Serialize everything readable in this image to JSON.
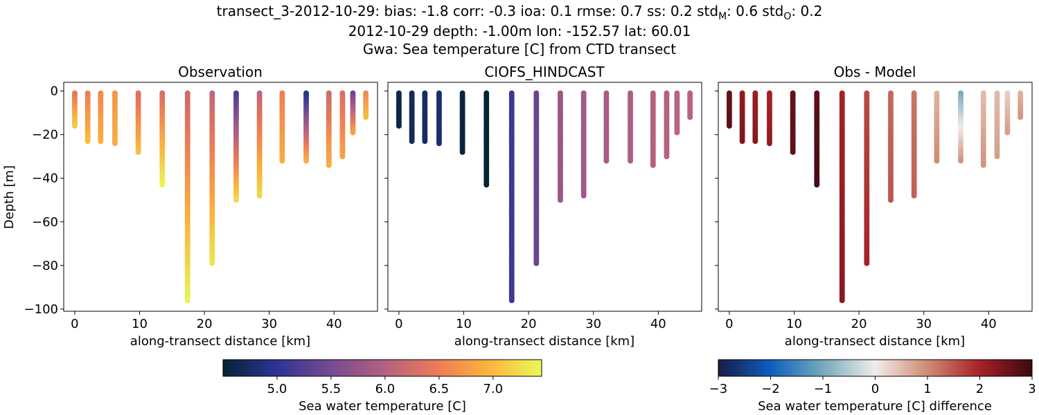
{
  "title": {
    "line1_prefix": "transect_3-2012-10-29: bias: -1.8  corr: -0.3  ioa: 0.1  rmse: 0.7  ss: 0.2  std",
    "line1_sub1": "M",
    "line1_mid": ": 0.6  std",
    "line1_sub2": "O",
    "line1_suffix": ": 0.2",
    "line2": "2012-10-29 depth: -1.00m lon: -152.57 lat: 60.01",
    "line3": "Gwa: Sea temperature [C] from CTD transect"
  },
  "chart_data": [
    {
      "type": "scatter",
      "title": "Observation",
      "xlabel": "along-transect distance [km]",
      "ylabel": "Depth [m]",
      "xlim": [
        -1.7,
        46.7
      ],
      "ylim": [
        -101,
        4
      ],
      "xticks": [
        0,
        10,
        20,
        30,
        40
      ],
      "yticks": [
        0,
        -20,
        -40,
        -60,
        -80,
        -100
      ],
      "ytick_labels": [
        "0",
        "−20",
        "−40",
        "−60",
        "−80",
        "−100"
      ],
      "colormap": "thermal",
      "stations": [
        {
          "x": 0.0,
          "max_depth": -16,
          "top": 6.4,
          "bottom": 7.1
        },
        {
          "x": 2.0,
          "max_depth": -23,
          "top": 6.5,
          "bottom": 7.0
        },
        {
          "x": 4.0,
          "max_depth": -23,
          "top": 6.6,
          "bottom": 6.9
        },
        {
          "x": 6.2,
          "max_depth": -24,
          "top": 6.7,
          "bottom": 6.9
        },
        {
          "x": 9.8,
          "max_depth": -28,
          "top": 6.3,
          "bottom": 7.0
        },
        {
          "x": 13.5,
          "max_depth": -43,
          "top": 6.3,
          "bottom": 7.4
        },
        {
          "x": 17.4,
          "max_depth": -96,
          "top": 6.2,
          "bottom": 7.4
        },
        {
          "x": 21.2,
          "max_depth": -79,
          "top": 6.1,
          "bottom": 7.3
        },
        {
          "x": 24.9,
          "max_depth": -50,
          "top": 5.2,
          "bottom": 7.2
        },
        {
          "x": 28.5,
          "max_depth": -48,
          "top": 6.1,
          "bottom": 7.2
        },
        {
          "x": 32.0,
          "max_depth": -32,
          "top": 6.5,
          "bottom": 6.9
        },
        {
          "x": 35.7,
          "max_depth": -32,
          "top": 4.9,
          "bottom": 6.9
        },
        {
          "x": 39.2,
          "max_depth": -34,
          "top": 6.2,
          "bottom": 6.9
        },
        {
          "x": 41.3,
          "max_depth": -30,
          "top": 6.3,
          "bottom": 6.8
        },
        {
          "x": 42.9,
          "max_depth": -19,
          "top": 5.4,
          "bottom": 6.8
        },
        {
          "x": 44.9,
          "max_depth": -12,
          "top": 6.6,
          "bottom": 7.0
        }
      ]
    },
    {
      "type": "scatter",
      "title": "CIOFS_HINDCAST",
      "xlabel": "along-transect distance [km]",
      "xlim": [
        -1.7,
        46.7
      ],
      "ylim": [
        -101,
        4
      ],
      "xticks": [
        0,
        10,
        20,
        30,
        40
      ],
      "colormap": "thermal",
      "stations": [
        {
          "x": 0.0,
          "max_depth": -16,
          "top": 4.6,
          "bottom": 4.6
        },
        {
          "x": 2.0,
          "max_depth": -23,
          "top": 4.7,
          "bottom": 4.7
        },
        {
          "x": 4.0,
          "max_depth": -23,
          "top": 4.75,
          "bottom": 4.75
        },
        {
          "x": 6.2,
          "max_depth": -24,
          "top": 4.8,
          "bottom": 4.8
        },
        {
          "x": 9.8,
          "max_depth": -28,
          "top": 4.55,
          "bottom": 4.55
        },
        {
          "x": 13.5,
          "max_depth": -43,
          "top": 4.5,
          "bottom": 4.5
        },
        {
          "x": 17.4,
          "max_depth": -96,
          "top": 5.1,
          "bottom": 5.1
        },
        {
          "x": 21.2,
          "max_depth": -79,
          "top": 5.4,
          "bottom": 5.4
        },
        {
          "x": 24.9,
          "max_depth": -50,
          "top": 5.8,
          "bottom": 5.8
        },
        {
          "x": 28.5,
          "max_depth": -48,
          "top": 5.85,
          "bottom": 5.85
        },
        {
          "x": 32.0,
          "max_depth": -32,
          "top": 5.9,
          "bottom": 5.9
        },
        {
          "x": 35.7,
          "max_depth": -32,
          "top": 5.95,
          "bottom": 5.95
        },
        {
          "x": 39.2,
          "max_depth": -34,
          "top": 6.0,
          "bottom": 6.0
        },
        {
          "x": 41.3,
          "max_depth": -30,
          "top": 6.0,
          "bottom": 6.0
        },
        {
          "x": 42.9,
          "max_depth": -19,
          "top": 6.05,
          "bottom": 6.05
        },
        {
          "x": 44.9,
          "max_depth": -12,
          "top": 6.05,
          "bottom": 6.05
        }
      ]
    },
    {
      "type": "scatter",
      "title": "Obs - Model",
      "xlabel": "along-transect distance [km]",
      "xlim": [
        -1.7,
        46.7
      ],
      "ylim": [
        -101,
        4
      ],
      "xticks": [
        0,
        10,
        20,
        30,
        40
      ],
      "colormap": "balance",
      "stations": [
        {
          "x": 0.0,
          "max_depth": -16,
          "top": 2.6,
          "bottom": 2.7
        },
        {
          "x": 2.0,
          "max_depth": -23,
          "top": 2.2,
          "bottom": 2.4
        },
        {
          "x": 4.0,
          "max_depth": -23,
          "top": 2.1,
          "bottom": 2.3
        },
        {
          "x": 6.2,
          "max_depth": -24,
          "top": 2.0,
          "bottom": 2.2
        },
        {
          "x": 9.8,
          "max_depth": -28,
          "top": 2.6,
          "bottom": 2.7
        },
        {
          "x": 13.5,
          "max_depth": -43,
          "top": 2.7,
          "bottom": 2.9
        },
        {
          "x": 17.4,
          "max_depth": -96,
          "top": 2.0,
          "bottom": 2.3
        },
        {
          "x": 21.2,
          "max_depth": -79,
          "top": 1.6,
          "bottom": 2.0
        },
        {
          "x": 24.9,
          "max_depth": -50,
          "top": 1.3,
          "bottom": 1.5
        },
        {
          "x": 28.5,
          "max_depth": -48,
          "top": 1.2,
          "bottom": 1.4
        },
        {
          "x": 32.0,
          "max_depth": -32,
          "top": 0.6,
          "bottom": 1.0
        },
        {
          "x": 35.7,
          "max_depth": -32,
          "top": -1.0,
          "bottom": 0.9
        },
        {
          "x": 39.2,
          "max_depth": -34,
          "top": 0.5,
          "bottom": 0.9
        },
        {
          "x": 41.3,
          "max_depth": -30,
          "top": 0.5,
          "bottom": 0.8
        },
        {
          "x": 42.9,
          "max_depth": -19,
          "top": 0.3,
          "bottom": 0.8
        },
        {
          "x": 44.9,
          "max_depth": -12,
          "top": 0.6,
          "bottom": 0.9
        }
      ]
    }
  ],
  "colorbars": [
    {
      "label": "Sea water temperature [C]",
      "colormap": "thermal",
      "vmin": 4.5,
      "vmax": 7.45,
      "ticks": [
        5.0,
        5.5,
        6.0,
        6.5,
        7.0
      ],
      "tick_labels": [
        "5.0",
        "5.5",
        "6.0",
        "6.5",
        "7.0"
      ]
    },
    {
      "label": "Sea water temperature [C] difference",
      "colormap": "balance",
      "vmin": -3,
      "vmax": 3,
      "ticks": [
        -3,
        -2,
        -1,
        0,
        1,
        2,
        3
      ],
      "tick_labels": [
        "−3",
        "−2",
        "−1",
        "0",
        "1",
        "2",
        "3"
      ]
    }
  ],
  "colormaps": {
    "thermal": [
      "#042333",
      "#2c3395",
      "#744992",
      "#b15f82",
      "#eb7958",
      "#fbb43d",
      "#e8fa5b"
    ],
    "balance": [
      "#181c43",
      "#0c5ebe",
      "#75aabe",
      "#f1eceb",
      "#d08b73",
      "#a52125",
      "#3c0912"
    ]
  }
}
